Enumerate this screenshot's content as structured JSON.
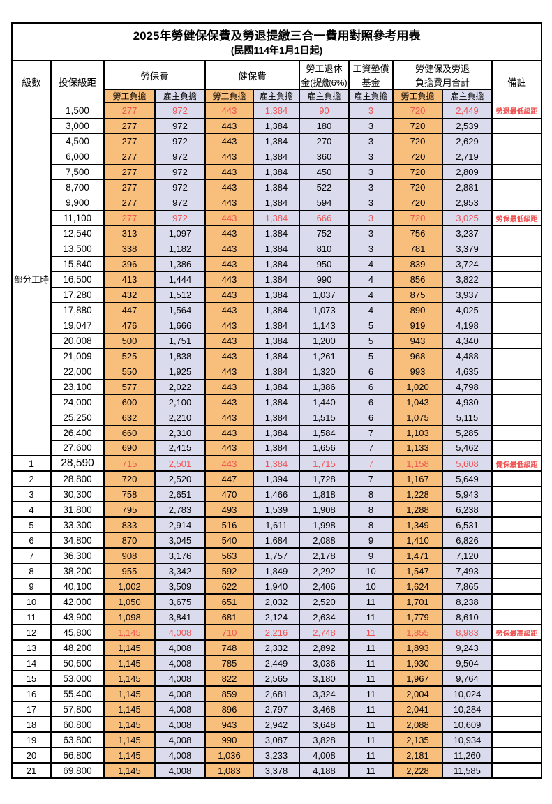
{
  "title": "2025年勞健保保費及勞退提繳三合一費用對照參考用表",
  "subtitle": "(民國114年1月1日起)",
  "header": {
    "level": "級數",
    "bracket": "投保級距",
    "labor_insurance": "勞保費",
    "health_insurance": "健保費",
    "pension_line1": "勞工退休",
    "pension_line2": "金(提繳6%)",
    "wage_fund_line1": "工資墊償",
    "wage_fund_line2": "基金",
    "total_line1": "勞健保及勞退",
    "total_line2": "負擔費用合計",
    "remark": "備註",
    "employee_share": "勞工負擔",
    "employer_share": "雇主負擔"
  },
  "part_time_label": "部分工時",
  "colors": {
    "employee_bg": "#F8BE7C",
    "employer_bg": "#DBDBEE",
    "highlight_red": "#F05352",
    "border": "#000000"
  },
  "columns": [
    "level",
    "bracket",
    "labor-employee",
    "labor-employer",
    "health-employee",
    "health-employer",
    "pension-employer",
    "fund-employer",
    "total-employee",
    "total-employer",
    "remark"
  ],
  "rows": [
    {
      "level": "",
      "bracket": "1,500",
      "values": [
        "277",
        "972",
        "443",
        "1,384",
        "90",
        "3",
        "720",
        "2,449"
      ],
      "remark": "勞退最低級距",
      "highlight": true,
      "emphasis": false
    },
    {
      "level": "",
      "bracket": "3,000",
      "values": [
        "277",
        "972",
        "443",
        "1,384",
        "180",
        "3",
        "720",
        "2,539"
      ],
      "remark": "",
      "highlight": false,
      "emphasis": false
    },
    {
      "level": "",
      "bracket": "4,500",
      "values": [
        "277",
        "972",
        "443",
        "1,384",
        "270",
        "3",
        "720",
        "2,629"
      ],
      "remark": "",
      "highlight": false,
      "emphasis": false
    },
    {
      "level": "",
      "bracket": "6,000",
      "values": [
        "277",
        "972",
        "443",
        "1,384",
        "360",
        "3",
        "720",
        "2,719"
      ],
      "remark": "",
      "highlight": false,
      "emphasis": false
    },
    {
      "level": "",
      "bracket": "7,500",
      "values": [
        "277",
        "972",
        "443",
        "1,384",
        "450",
        "3",
        "720",
        "2,809"
      ],
      "remark": "",
      "highlight": false,
      "emphasis": false
    },
    {
      "level": "",
      "bracket": "8,700",
      "values": [
        "277",
        "972",
        "443",
        "1,384",
        "522",
        "3",
        "720",
        "2,881"
      ],
      "remark": "",
      "highlight": false,
      "emphasis": false
    },
    {
      "level": "",
      "bracket": "9,900",
      "values": [
        "277",
        "972",
        "443",
        "1,384",
        "594",
        "3",
        "720",
        "2,953"
      ],
      "remark": "",
      "highlight": false,
      "emphasis": false
    },
    {
      "level": "",
      "bracket": "11,100",
      "values": [
        "277",
        "972",
        "443",
        "1,384",
        "666",
        "3",
        "720",
        "3,025"
      ],
      "remark": "勞保最低級距",
      "highlight": true,
      "emphasis": false
    },
    {
      "level": "",
      "bracket": "12,540",
      "values": [
        "313",
        "1,097",
        "443",
        "1,384",
        "752",
        "3",
        "756",
        "3,237"
      ],
      "remark": "",
      "highlight": false,
      "emphasis": false
    },
    {
      "level": "",
      "bracket": "13,500",
      "values": [
        "338",
        "1,182",
        "443",
        "1,384",
        "810",
        "3",
        "781",
        "3,379"
      ],
      "remark": "",
      "highlight": false,
      "emphasis": false
    },
    {
      "level": "",
      "bracket": "15,840",
      "values": [
        "396",
        "1,386",
        "443",
        "1,384",
        "950",
        "4",
        "839",
        "3,724"
      ],
      "remark": "",
      "highlight": false,
      "emphasis": false
    },
    {
      "level": "",
      "bracket": "16,500",
      "values": [
        "413",
        "1,444",
        "443",
        "1,384",
        "990",
        "4",
        "856",
        "3,822"
      ],
      "remark": "",
      "highlight": false,
      "emphasis": false
    },
    {
      "level": "",
      "bracket": "17,280",
      "values": [
        "432",
        "1,512",
        "443",
        "1,384",
        "1,037",
        "4",
        "875",
        "3,937"
      ],
      "remark": "",
      "highlight": false,
      "emphasis": false
    },
    {
      "level": "",
      "bracket": "17,880",
      "values": [
        "447",
        "1,564",
        "443",
        "1,384",
        "1,073",
        "4",
        "890",
        "4,025"
      ],
      "remark": "",
      "highlight": false,
      "emphasis": false
    },
    {
      "level": "",
      "bracket": "19,047",
      "values": [
        "476",
        "1,666",
        "443",
        "1,384",
        "1,143",
        "5",
        "919",
        "4,198"
      ],
      "remark": "",
      "highlight": false,
      "emphasis": false
    },
    {
      "level": "",
      "bracket": "20,008",
      "values": [
        "500",
        "1,751",
        "443",
        "1,384",
        "1,200",
        "5",
        "943",
        "4,340"
      ],
      "remark": "",
      "highlight": false,
      "emphasis": false
    },
    {
      "level": "",
      "bracket": "21,009",
      "values": [
        "525",
        "1,838",
        "443",
        "1,384",
        "1,261",
        "5",
        "968",
        "4,488"
      ],
      "remark": "",
      "highlight": false,
      "emphasis": false
    },
    {
      "level": "",
      "bracket": "22,000",
      "values": [
        "550",
        "1,925",
        "443",
        "1,384",
        "1,320",
        "6",
        "993",
        "4,635"
      ],
      "remark": "",
      "highlight": false,
      "emphasis": false
    },
    {
      "level": "",
      "bracket": "23,100",
      "values": [
        "577",
        "2,022",
        "443",
        "1,384",
        "1,386",
        "6",
        "1,020",
        "4,798"
      ],
      "remark": "",
      "highlight": false,
      "emphasis": false
    },
    {
      "level": "",
      "bracket": "24,000",
      "values": [
        "600",
        "2,100",
        "443",
        "1,384",
        "1,440",
        "6",
        "1,043",
        "4,930"
      ],
      "remark": "",
      "highlight": false,
      "emphasis": false
    },
    {
      "level": "",
      "bracket": "25,250",
      "values": [
        "632",
        "2,210",
        "443",
        "1,384",
        "1,515",
        "6",
        "1,075",
        "5,115"
      ],
      "remark": "",
      "highlight": false,
      "emphasis": false
    },
    {
      "level": "",
      "bracket": "26,400",
      "values": [
        "660",
        "2,310",
        "443",
        "1,384",
        "1,584",
        "7",
        "1,103",
        "5,285"
      ],
      "remark": "",
      "highlight": false,
      "emphasis": false
    },
    {
      "level": "",
      "bracket": "27,600",
      "values": [
        "690",
        "2,415",
        "443",
        "1,384",
        "1,656",
        "7",
        "1,133",
        "5,462"
      ],
      "remark": "",
      "highlight": false,
      "emphasis": false
    },
    {
      "level": "1",
      "bracket": "28,590",
      "values": [
        "715",
        "2,501",
        "443",
        "1,384",
        "1,715",
        "7",
        "1,158",
        "5,608"
      ],
      "remark": "健保最低級距",
      "highlight": true,
      "emphasis": true
    },
    {
      "level": "2",
      "bracket": "28,800",
      "values": [
        "720",
        "2,520",
        "447",
        "1,394",
        "1,728",
        "7",
        "1,167",
        "5,649"
      ],
      "remark": "",
      "highlight": false,
      "emphasis": false
    },
    {
      "level": "3",
      "bracket": "30,300",
      "values": [
        "758",
        "2,651",
        "470",
        "1,466",
        "1,818",
        "8",
        "1,228",
        "5,943"
      ],
      "remark": "",
      "highlight": false,
      "emphasis": false
    },
    {
      "level": "4",
      "bracket": "31,800",
      "values": [
        "795",
        "2,783",
        "493",
        "1,539",
        "1,908",
        "8",
        "1,288",
        "6,238"
      ],
      "remark": "",
      "highlight": false,
      "emphasis": false
    },
    {
      "level": "5",
      "bracket": "33,300",
      "values": [
        "833",
        "2,914",
        "516",
        "1,611",
        "1,998",
        "8",
        "1,349",
        "6,531"
      ],
      "remark": "",
      "highlight": false,
      "emphasis": false
    },
    {
      "level": "6",
      "bracket": "34,800",
      "values": [
        "870",
        "3,045",
        "540",
        "1,684",
        "2,088",
        "9",
        "1,410",
        "6,826"
      ],
      "remark": "",
      "highlight": false,
      "emphasis": false
    },
    {
      "level": "7",
      "bracket": "36,300",
      "values": [
        "908",
        "3,176",
        "563",
        "1,757",
        "2,178",
        "9",
        "1,471",
        "7,120"
      ],
      "remark": "",
      "highlight": false,
      "emphasis": false
    },
    {
      "level": "8",
      "bracket": "38,200",
      "values": [
        "955",
        "3,342",
        "592",
        "1,849",
        "2,292",
        "10",
        "1,547",
        "7,493"
      ],
      "remark": "",
      "highlight": false,
      "emphasis": false
    },
    {
      "level": "9",
      "bracket": "40,100",
      "values": [
        "1,002",
        "3,509",
        "622",
        "1,940",
        "2,406",
        "10",
        "1,624",
        "7,865"
      ],
      "remark": "",
      "highlight": false,
      "emphasis": false
    },
    {
      "level": "10",
      "bracket": "42,000",
      "values": [
        "1,050",
        "3,675",
        "651",
        "2,032",
        "2,520",
        "11",
        "1,701",
        "8,238"
      ],
      "remark": "",
      "highlight": false,
      "emphasis": false
    },
    {
      "level": "11",
      "bracket": "43,900",
      "values": [
        "1,098",
        "3,841",
        "681",
        "2,124",
        "2,634",
        "11",
        "1,779",
        "8,610"
      ],
      "remark": "",
      "highlight": false,
      "emphasis": false
    },
    {
      "level": "12",
      "bracket": "45,800",
      "values": [
        "1,145",
        "4,008",
        "710",
        "2,216",
        "2,748",
        "11",
        "1,855",
        "8,983"
      ],
      "remark": "勞保最高級距",
      "highlight": true,
      "emphasis": false
    },
    {
      "level": "13",
      "bracket": "48,200",
      "values": [
        "1,145",
        "4,008",
        "748",
        "2,332",
        "2,892",
        "11",
        "1,893",
        "9,243"
      ],
      "remark": "",
      "highlight": false,
      "emphasis": false
    },
    {
      "level": "14",
      "bracket": "50,600",
      "values": [
        "1,145",
        "4,008",
        "785",
        "2,449",
        "3,036",
        "11",
        "1,930",
        "9,504"
      ],
      "remark": "",
      "highlight": false,
      "emphasis": false
    },
    {
      "level": "15",
      "bracket": "53,000",
      "values": [
        "1,145",
        "4,008",
        "822",
        "2,565",
        "3,180",
        "11",
        "1,967",
        "9,764"
      ],
      "remark": "",
      "highlight": false,
      "emphasis": false
    },
    {
      "level": "16",
      "bracket": "55,400",
      "values": [
        "1,145",
        "4,008",
        "859",
        "2,681",
        "3,324",
        "11",
        "2,004",
        "10,024"
      ],
      "remark": "",
      "highlight": false,
      "emphasis": false
    },
    {
      "level": "17",
      "bracket": "57,800",
      "values": [
        "1,145",
        "4,008",
        "896",
        "2,797",
        "3,468",
        "11",
        "2,041",
        "10,284"
      ],
      "remark": "",
      "highlight": false,
      "emphasis": false
    },
    {
      "level": "18",
      "bracket": "60,800",
      "values": [
        "1,145",
        "4,008",
        "943",
        "2,942",
        "3,648",
        "11",
        "2,088",
        "10,609"
      ],
      "remark": "",
      "highlight": false,
      "emphasis": false
    },
    {
      "level": "19",
      "bracket": "63,800",
      "values": [
        "1,145",
        "4,008",
        "990",
        "3,087",
        "3,828",
        "11",
        "2,135",
        "10,934"
      ],
      "remark": "",
      "highlight": false,
      "emphasis": false
    },
    {
      "level": "20",
      "bracket": "66,800",
      "values": [
        "1,145",
        "4,008",
        "1,036",
        "3,233",
        "4,008",
        "11",
        "2,181",
        "11,260"
      ],
      "remark": "",
      "highlight": false,
      "emphasis": false
    },
    {
      "level": "21",
      "bracket": "69,800",
      "values": [
        "1,145",
        "4,008",
        "1,083",
        "3,378",
        "4,188",
        "11",
        "2,228",
        "11,585"
      ],
      "remark": "",
      "highlight": false,
      "emphasis": false
    }
  ]
}
